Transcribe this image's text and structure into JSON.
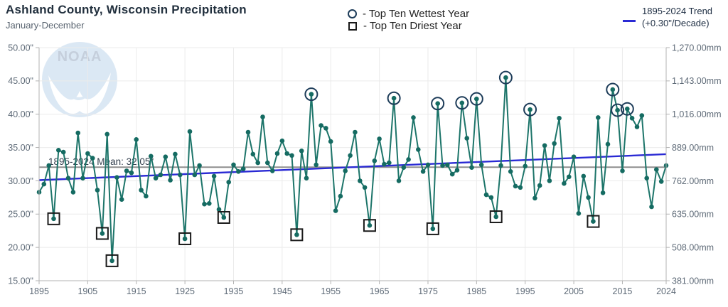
{
  "header": {
    "title": "Ashland County, Wisconsin Precipitation",
    "subtitle": "January-December"
  },
  "legend": {
    "wettest_label": "- Top Ten Wettest Year",
    "driest_label": "- Top Ten Driest Year"
  },
  "trend_legend": {
    "line1": "1895-2024 Trend",
    "line2": "(+0.30\"/Decade)"
  },
  "watermark": {
    "text": "NOAA"
  },
  "chart_data": {
    "type": "line",
    "title": "Ashland County, Wisconsin Precipitation",
    "subtitle": "January-December",
    "x_start_year": 1895,
    "x_end_year": 2024,
    "ylim": [
      15,
      50
    ],
    "values": [
      28.3,
      29.5,
      32.3,
      24.3,
      34.6,
      34.3,
      30.4,
      28.3,
      37.2,
      30.4,
      34.1,
      33.4,
      28.6,
      22.1,
      37.0,
      18.0,
      30.5,
      27.2,
      31.5,
      31.2,
      36.2,
      28.6,
      27.7,
      33.7,
      30.4,
      30.9,
      33.6,
      30.1,
      34.0,
      30.9,
      21.3,
      37.4,
      30.9,
      32.3,
      26.5,
      26.6,
      30.7,
      25.7,
      24.5,
      29.8,
      32.4,
      31.4,
      31.8,
      37.3,
      34.0,
      32.7,
      39.6,
      32.7,
      31.5,
      34.1,
      36.0,
      34.1,
      33.8,
      21.9,
      34.5,
      30.4,
      43.0,
      32.4,
      38.3,
      37.9,
      35.9,
      25.5,
      27.7,
      31.5,
      33.8,
      37.3,
      30.0,
      29.0,
      23.3,
      33.0,
      36.3,
      32.5,
      32.7,
      42.4,
      30.0,
      32.0,
      33.2,
      39.5,
      34.7,
      31.4,
      32.4,
      22.8,
      41.6,
      32.3,
      32.4,
      31.0,
      31.6,
      41.7,
      36.4,
      32.0,
      42.3,
      32.4,
      27.9,
      27.5,
      24.6,
      32.3,
      45.5,
      31.4,
      29.2,
      29.0,
      32.2,
      40.7,
      27.4,
      29.3,
      35.3,
      30.0,
      35.6,
      39.4,
      29.6,
      30.6,
      33.6,
      25.1,
      30.7,
      27.5,
      23.9,
      39.5,
      28.2,
      35.5,
      43.7,
      40.6,
      31.5,
      40.8,
      39.4,
      38.1,
      39.8,
      30.4,
      26.1,
      31.7,
      29.9,
      32.3
    ],
    "wettest_years_circled": [
      1951,
      1968,
      1977,
      1982,
      1985,
      1991,
      1996,
      2013,
      2014,
      2016
    ],
    "driest_years_boxed": [
      1898,
      1908,
      1910,
      1925,
      1933,
      1948,
      1963,
      1976,
      1989,
      2009
    ],
    "mean": {
      "value": 32.05,
      "label": "1895-2024 Mean: 32.05\""
    },
    "trend": {
      "rate_label": "+0.30\"/Decade",
      "start_value": 30.1,
      "end_value": 34.0
    },
    "y_axis_left": {
      "unit": "inches",
      "ticks": [
        15,
        20,
        25,
        30,
        35,
        40,
        45,
        50
      ],
      "tick_labels": [
        "15.00\"",
        "20.00\"",
        "25.00\"",
        "30.00\"",
        "35.00\"",
        "40.00\"",
        "45.00\"",
        "50.00\""
      ]
    },
    "y_axis_right": {
      "unit": "mm",
      "tick_labels": [
        "381.00mm",
        "508.00mm",
        "635.00mm",
        "762.00mm",
        "889.00mm",
        "1,016.00mm",
        "1,143.00mm",
        "1,270.00mm"
      ]
    },
    "x_axis": {
      "ticks": [
        1895,
        1905,
        1915,
        1925,
        1935,
        1945,
        1955,
        1965,
        1975,
        1985,
        1995,
        2005,
        2015,
        2024
      ],
      "tick_labels": [
        "1895",
        "1905",
        "1915",
        "1925",
        "1935",
        "1945",
        "1955",
        "1965",
        "1975",
        "1985",
        "1995",
        "2005",
        "2015",
        "2024"
      ]
    },
    "legend_position": "top",
    "grid": true,
    "colors": {
      "series": "#1d756a",
      "point": "#156b62",
      "trend": "#2a2ad4",
      "mean_line": "#8e8e8e",
      "wettest_marker": "#1d3c59",
      "driest_marker": "#1a1a1a",
      "grid": "#ebebeb",
      "axis": "#b3b3b3",
      "axis_text": "#5f6b78",
      "watermark_circle": "#d8e6f3",
      "watermark_text": "#bfcad9"
    }
  }
}
